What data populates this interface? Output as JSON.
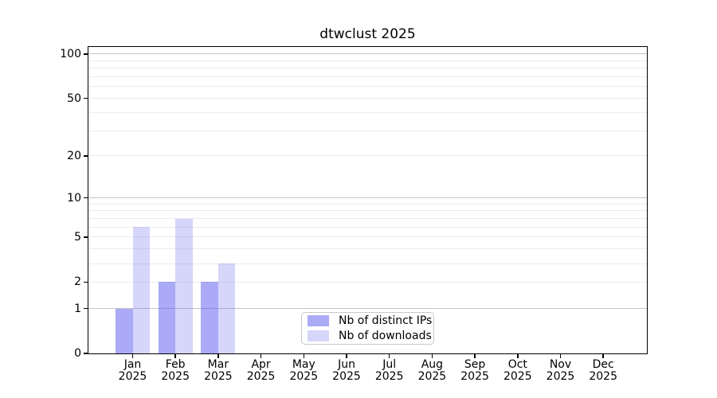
{
  "chart_data": {
    "type": "bar",
    "title": "dtwclust 2025",
    "yscale": "log1p",
    "ylim": [
      0,
      110
    ],
    "grid": "horizontal",
    "legend_position": "lower-center-inside",
    "categories": [
      {
        "month": "Jan",
        "year": "2025"
      },
      {
        "month": "Feb",
        "year": "2025"
      },
      {
        "month": "Mar",
        "year": "2025"
      },
      {
        "month": "Apr",
        "year": "2025"
      },
      {
        "month": "May",
        "year": "2025"
      },
      {
        "month": "Jun",
        "year": "2025"
      },
      {
        "month": "Jul",
        "year": "2025"
      },
      {
        "month": "Aug",
        "year": "2025"
      },
      {
        "month": "Sep",
        "year": "2025"
      },
      {
        "month": "Oct",
        "year": "2025"
      },
      {
        "month": "Nov",
        "year": "2025"
      },
      {
        "month": "Dec",
        "year": "2025"
      }
    ],
    "series": [
      {
        "name": "Nb of distinct IPs",
        "color": "#5555f0",
        "alpha": 0.5,
        "color_on_white": "#a9a9f7",
        "values": [
          1,
          2,
          2,
          0,
          0,
          0,
          0,
          0,
          0,
          0,
          0,
          0
        ]
      },
      {
        "name": "Nb of downloads",
        "color": "#5555f0",
        "alpha": 0.24,
        "color_on_white": "#d9d9f7",
        "values": [
          6,
          7,
          3,
          0,
          0,
          0,
          0,
          0,
          0,
          0,
          0,
          0
        ]
      }
    ],
    "yticks": [
      100,
      50,
      20,
      10,
      5,
      2,
      1,
      0
    ],
    "gridlines": {
      "major": [
        1,
        10,
        100
      ],
      "minor": [
        2,
        3,
        4,
        5,
        6,
        7,
        8,
        9,
        20,
        30,
        40,
        50,
        60,
        70,
        80,
        90
      ]
    },
    "colors": {
      "axis": "#000000",
      "grid_minor": "#ebebeb",
      "grid_major": "#c6c6c6"
    }
  }
}
